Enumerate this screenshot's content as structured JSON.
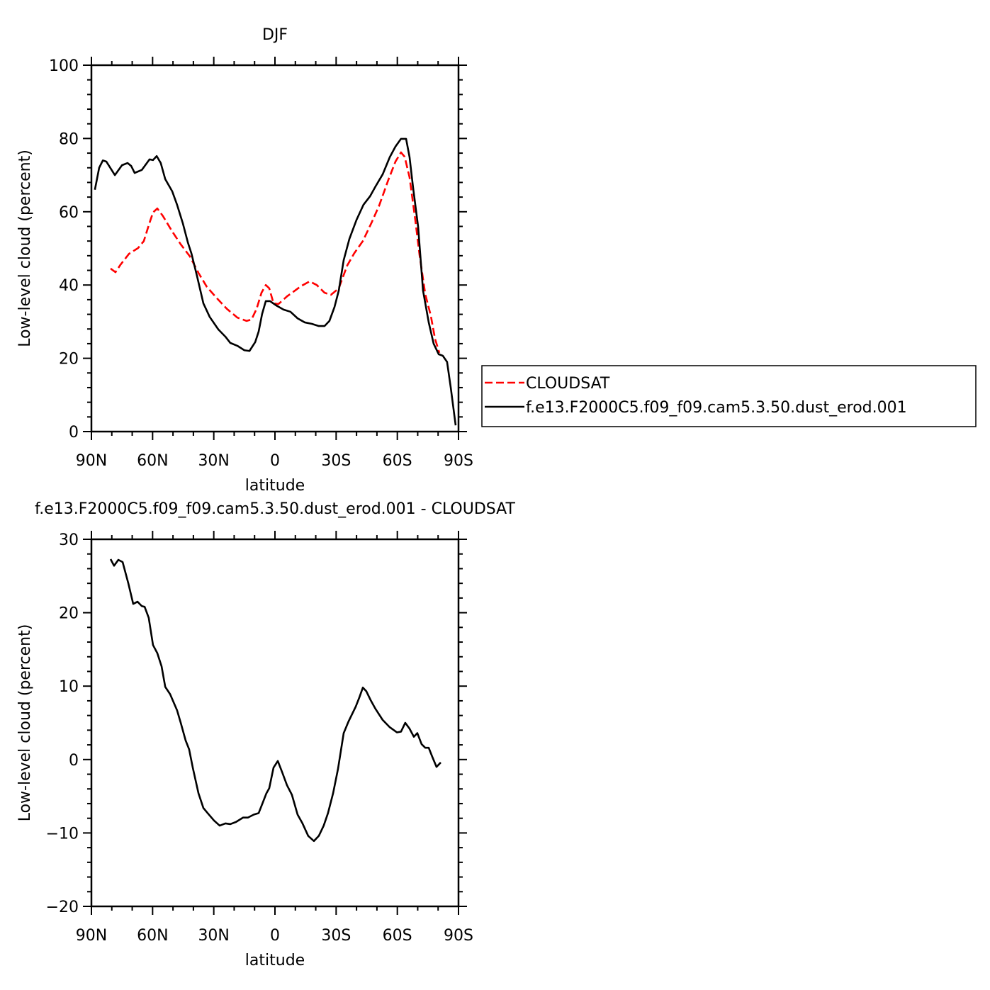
{
  "chart_data": [
    {
      "type": "line",
      "title": "DJF",
      "x_label": "latitude",
      "y_label": "Low-level cloud (percent)",
      "xlim": [
        90,
        -90
      ],
      "xticks": [
        {
          "value": 90,
          "label": "90N"
        },
        {
          "value": 60,
          "label": "60N"
        },
        {
          "value": 30,
          "label": "30N"
        },
        0,
        {
          "value": -30,
          "label": "30S"
        },
        {
          "value": -60,
          "label": "60S"
        },
        {
          "value": -90,
          "label": "90S"
        }
      ],
      "ylim": [
        0,
        100
      ],
      "yticks": [
        0,
        20,
        40,
        60,
        80,
        100
      ],
      "legend": "outside right",
      "series": [
        {
          "name": "CLOUDSAT",
          "color": "#ff0000",
          "style": "dashed",
          "x": [
            80.6,
            78.2,
            75.8,
            71.6,
            67.1,
            64.3,
            61.9,
            59.8,
            57.7,
            54.9,
            50.7,
            46.2,
            41.7,
            37.5,
            33.4,
            28.8,
            23.6,
            18.4,
            13.9,
            11.5,
            9,
            6.6,
            4.5,
            2.8,
            0.7,
            -1.7,
            -5.9,
            -9.4,
            -12.8,
            -17,
            -20.5,
            -24.3,
            -27.4,
            -31.3,
            -35.4,
            -38.9,
            -43.1,
            -47.6,
            -51.1,
            -55.6,
            -59.1,
            -61.8,
            -63.6,
            -66,
            -68.8,
            -70.9,
            -73.7,
            -76.4,
            -78.5,
            -80.6
          ],
          "values": [
            44.5,
            43.5,
            45.5,
            48.5,
            50.1,
            52,
            56.3,
            59.8,
            60.9,
            58.8,
            54.9,
            51.1,
            47.8,
            43.3,
            39.5,
            36.6,
            33.5,
            31.1,
            30.2,
            30.6,
            33.5,
            37.9,
            40,
            39.1,
            35,
            34.8,
            36.9,
            38.3,
            39.7,
            41,
            40,
            37.9,
            37.3,
            39.1,
            45.3,
            48.7,
            52,
            57.3,
            61.7,
            68.7,
            73.7,
            76.2,
            75,
            69.4,
            57.8,
            48.2,
            37.5,
            31.7,
            25.3,
            21.5
          ]
        },
        {
          "name": "f.e13.F2000C5.f09_f09.cam5.3.50.dust_erod.001",
          "color": "#000000",
          "style": "solid",
          "x": [
            88.3,
            86.2,
            84.4,
            82.7,
            78.5,
            75,
            72.3,
            70.5,
            68.8,
            65.3,
            61.5,
            59.8,
            58,
            56,
            53.8,
            50.4,
            48,
            45.2,
            42.7,
            41,
            38.2,
            35.1,
            32,
            27.8,
            24.3,
            21.9,
            18.4,
            15,
            12.5,
            9.7,
            8,
            6.3,
            4.5,
            2.4,
            -0.7,
            -4.2,
            -7.6,
            -11.1,
            -14.6,
            -18.1,
            -21.5,
            -24.3,
            -26.7,
            -29.2,
            -31.3,
            -33.7,
            -36.5,
            -40,
            -43.4,
            -46.6,
            -49.3,
            -52.8,
            -56.3,
            -59.1,
            -61.8,
            -64.3,
            -66,
            -67.7,
            -70.2,
            -72.6,
            -75.4,
            -77.8,
            -80.3,
            -82.3,
            -84.4,
            -86.2,
            -88.6
          ],
          "values": [
            66,
            72,
            74,
            73.7,
            70,
            72.7,
            73.3,
            72.5,
            70.6,
            71.4,
            74.3,
            74.1,
            75.2,
            73.3,
            68.9,
            65.6,
            61.9,
            56.9,
            51.6,
            48.7,
            42.4,
            35,
            31.3,
            27.9,
            25.9,
            24.2,
            23.4,
            22.2,
            22,
            24.4,
            27.3,
            32.1,
            35.6,
            35.6,
            34.4,
            33.3,
            32.7,
            30.9,
            29.8,
            29.4,
            28.8,
            28.8,
            30.2,
            34,
            38.5,
            46.8,
            52.6,
            57.8,
            61.9,
            64.2,
            66.9,
            70.2,
            74.9,
            77.8,
            79.9,
            79.9,
            74.9,
            66.7,
            55.9,
            38.5,
            29.8,
            24,
            21.1,
            20.7,
            19,
            12,
            1.7
          ]
        }
      ]
    },
    {
      "type": "line",
      "title": "f.e13.F2000C5.f09_f09.cam5.3.50.dust_erod.001 - CLOUDSAT",
      "x_label": "latitude",
      "y_label": "Low-level cloud (percent)",
      "xlim": [
        90,
        -90
      ],
      "xticks": [
        {
          "value": 90,
          "label": "90N"
        },
        {
          "value": 60,
          "label": "60N"
        },
        {
          "value": 30,
          "label": "30N"
        },
        0,
        {
          "value": -30,
          "label": "30S"
        },
        {
          "value": -60,
          "label": "60S"
        },
        {
          "value": -90,
          "label": "90S"
        }
      ],
      "ylim": [
        -20,
        30
      ],
      "yticks": [
        {
          "value": -20,
          "label": "−20"
        },
        {
          "value": -10,
          "label": "−10"
        },
        0,
        10,
        20,
        30
      ],
      "series": [
        {
          "color": "#000000",
          "style": "solid",
          "x": [
            80.6,
            78.9,
            76.8,
            74.7,
            71.9,
            69.5,
            67.4,
            65.3,
            63.9,
            61.9,
            59.8,
            57.7,
            55.6,
            53.8,
            51.4,
            48,
            46.2,
            43.8,
            42.1,
            40.3,
            37.5,
            35.1,
            33,
            29.9,
            27.1,
            24.3,
            21.9,
            19.1,
            15.6,
            13.2,
            10.4,
            8,
            6.3,
            4.2,
            2.8,
            0.7,
            -1.4,
            -3.5,
            -5.9,
            -8.3,
            -11.1,
            -13.5,
            -16.3,
            -19.1,
            -21.5,
            -23.9,
            -26,
            -28.5,
            -30.9,
            -33.7,
            -36.1,
            -39.6,
            -41.3,
            -43.1,
            -44.8,
            -46.9,
            -49.3,
            -52.8,
            -56.3,
            -59.8,
            -61.8,
            -63.9,
            -66,
            -68.1,
            -69.8,
            -71.9,
            -73.7,
            -75.4,
            -77.1,
            -79.2,
            -81.3
          ],
          "values": [
            27.3,
            26.4,
            27.2,
            26.9,
            24,
            21.2,
            21.5,
            20.9,
            20.8,
            19.3,
            15.6,
            14.5,
            12.7,
            9.9,
            8.9,
            6.7,
            5,
            2.6,
            1.4,
            -1.1,
            -4.6,
            -6.6,
            -7.3,
            -8.3,
            -9,
            -8.7,
            -8.8,
            -8.5,
            -7.9,
            -7.9,
            -7.5,
            -7.3,
            -6.1,
            -4.6,
            -3.9,
            -1.1,
            -0.2,
            -1.7,
            -3.5,
            -4.8,
            -7.5,
            -8.7,
            -10.4,
            -11.1,
            -10.4,
            -9,
            -7.3,
            -4.6,
            -1.3,
            3.6,
            5.2,
            7.2,
            8.4,
            9.8,
            9.3,
            8.1,
            6.9,
            5.4,
            4.4,
            3.7,
            3.8,
            5,
            4.2,
            3.1,
            3.6,
            2.1,
            1.6,
            1.6,
            0.4,
            -1,
            -0.4
          ]
        }
      ]
    }
  ]
}
